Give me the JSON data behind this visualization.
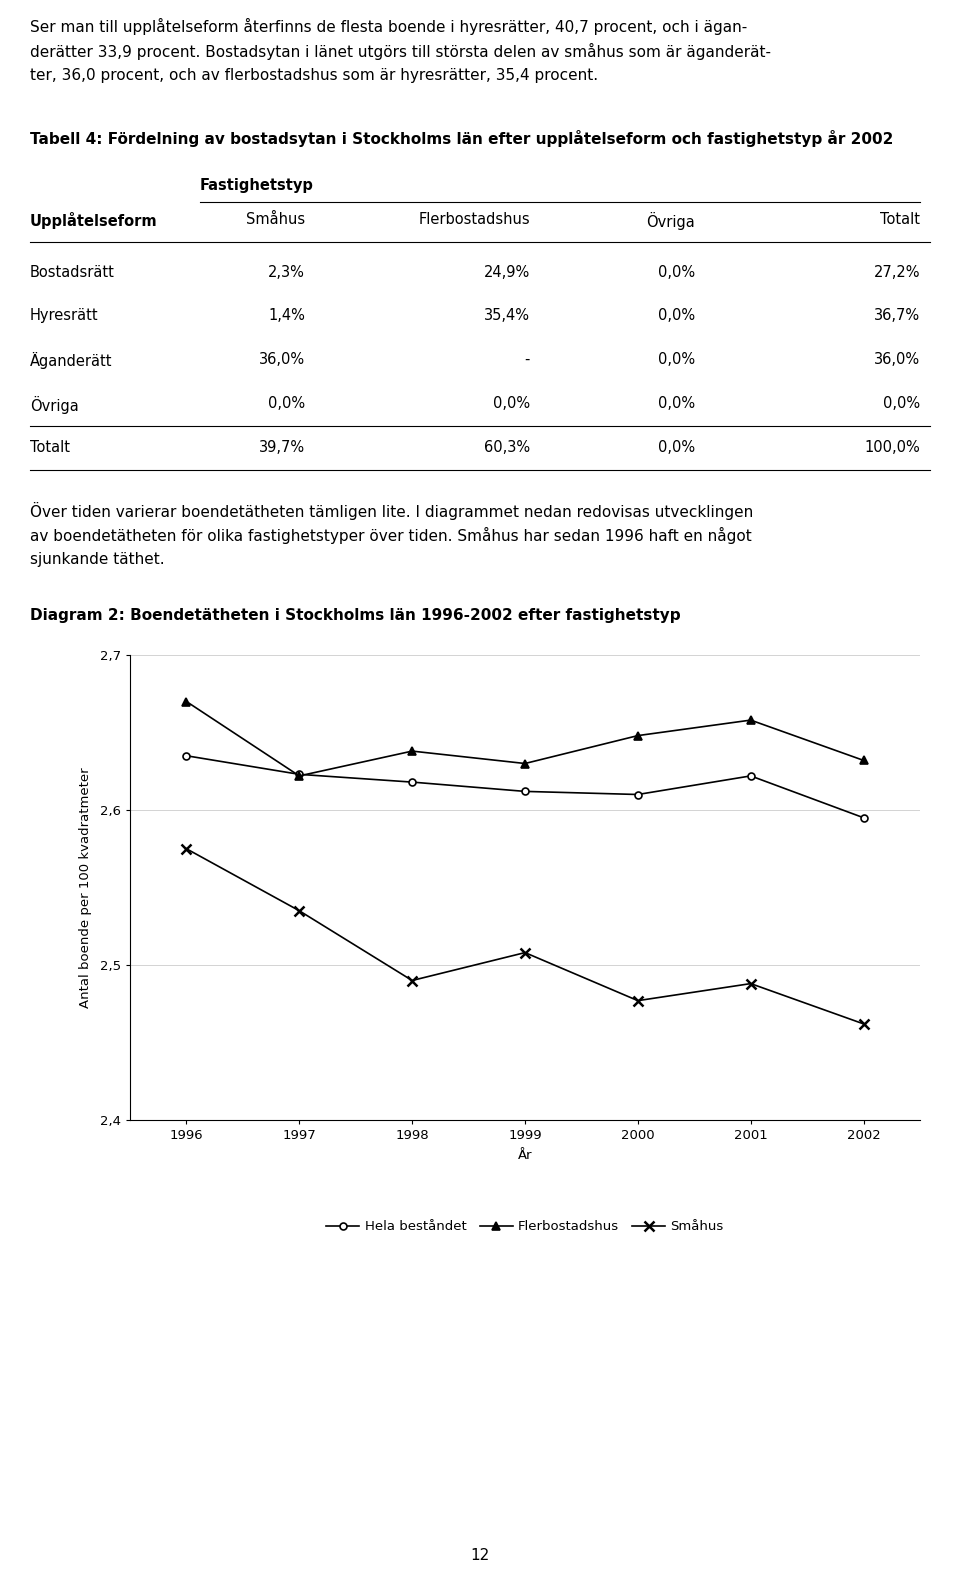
{
  "para1_lines": [
    "Ser man till upplåtelseform återfinns de flesta boende i hyresrätter, 40,7 procent, och i ägan-",
    "derätter 33,9 procent. Bostadsytan i länet utgörs till största delen av småhus som är äganderät-",
    "ter, 36,0 procent, och av flerbostadshus som är hyresrätter, 35,4 procent."
  ],
  "table_title": "Tabell 4: Fördelning av bostadsytan i Stockholms län efter upplåtelseform och fastighetstyp år 2002",
  "fastighetstyp_label": "Fastighetstyp",
  "col_headers": [
    "Upplåtelseform",
    "Småhus",
    "Flerbostadshus",
    "Övriga",
    "Totalt"
  ],
  "rows": [
    [
      "Bostadsrätt",
      "2,3%",
      "24,9%",
      "0,0%",
      "27,2%"
    ],
    [
      "Hyresrätt",
      "1,4%",
      "35,4%",
      "0,0%",
      "36,7%"
    ],
    [
      "Äganderätt",
      "36,0%",
      "-",
      "0,0%",
      "36,0%"
    ],
    [
      "Övriga",
      "0,0%",
      "0,0%",
      "0,0%",
      "0,0%"
    ],
    [
      "Totalt",
      "39,7%",
      "60,3%",
      "0,0%",
      "100,0%"
    ]
  ],
  "para2_lines": [
    "Över tiden varierar boendetätheten tämligen lite. I diagrammet nedan redovisas utvecklingen",
    "av boendetätheten för olika fastighetstyper över tiden. Småhus har sedan 1996 haft en något",
    "sjunkande täthet."
  ],
  "diagram_title": "Diagram 2: Boendetätheten i Stockholms län 1996-2002 efter fastighetstyp",
  "xlabel": "År",
  "ylabel": "Antal boende per 100 kvadratmeter",
  "years": [
    1996,
    1997,
    1998,
    1999,
    2000,
    2001,
    2002
  ],
  "hela_bestandet": [
    2.635,
    2.623,
    2.618,
    2.612,
    2.61,
    2.622,
    2.595
  ],
  "flerbostadshus": [
    2.67,
    2.622,
    2.638,
    2.63,
    2.648,
    2.658,
    2.632
  ],
  "smahus": [
    2.575,
    2.535,
    2.49,
    2.508,
    2.477,
    2.488,
    2.462
  ],
  "ylim": [
    2.4,
    2.7
  ],
  "yticks": [
    2.4,
    2.5,
    2.6,
    2.7
  ],
  "legend_entries": [
    "Hela beståndet",
    "Flerbostadshus",
    "Småhus"
  ],
  "page_number": "12",
  "bg_color": "#ffffff",
  "text_color": "#000000"
}
